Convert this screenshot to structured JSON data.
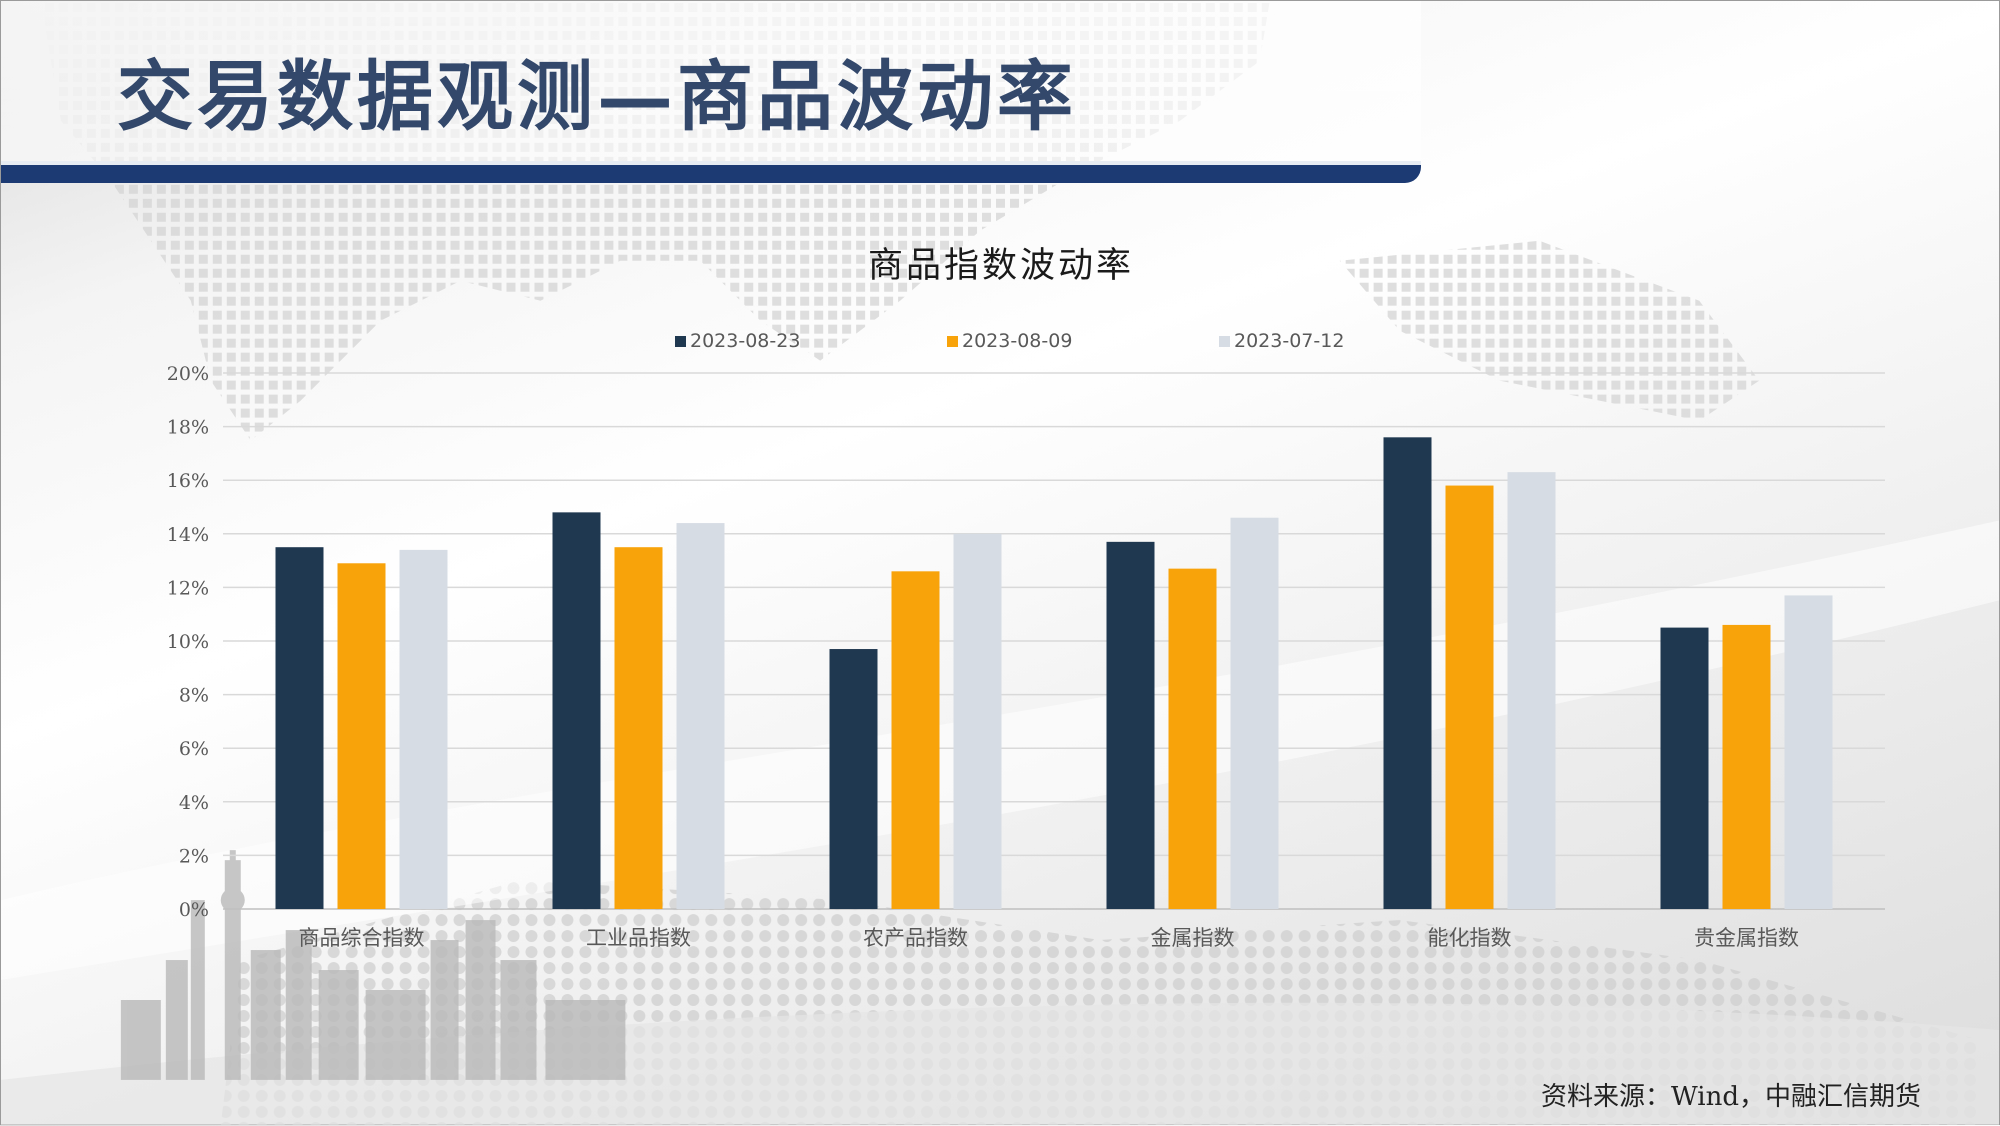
{
  "page": {
    "title": "交易数据观测—商品波动率",
    "source": "资料来源：Wind，中融汇信期货"
  },
  "colors": {
    "title_text": "#33486b",
    "title_rule": "#1c3a73",
    "series": [
      "#1f3850",
      "#f8a30a",
      "#d6dce4"
    ]
  },
  "chart_data": {
    "type": "bar",
    "title": "商品指数波动率",
    "xlabel": "",
    "ylabel": "",
    "categories": [
      "商品综合指数",
      "工业品指数",
      "农产品指数",
      "金属指数",
      "能化指数",
      "贵金属指数"
    ],
    "series": [
      {
        "name": "2023-08-23",
        "values": [
          13.5,
          14.8,
          9.7,
          13.7,
          17.6,
          10.5
        ]
      },
      {
        "name": "2023-08-09",
        "values": [
          12.9,
          13.5,
          12.6,
          12.7,
          15.8,
          10.6
        ]
      },
      {
        "name": "2023-07-12",
        "values": [
          13.4,
          14.4,
          14.0,
          14.6,
          16.3,
          11.7
        ]
      }
    ],
    "ylim": [
      0,
      20
    ],
    "yticks": [
      "0%",
      "2%",
      "4%",
      "6%",
      "8%",
      "10%",
      "12%",
      "14%",
      "16%",
      "18%",
      "20%"
    ],
    "grid": true,
    "legend_position": "top"
  }
}
